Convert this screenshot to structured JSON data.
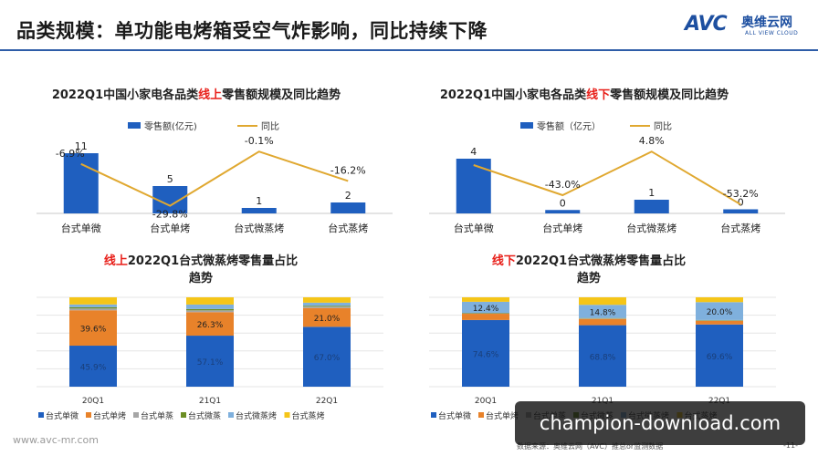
{
  "header": {
    "title": "品类规模：单功能电烤箱受空气炸影响，同比持续下降",
    "logo_mark": "AVC",
    "logo_cn": "奥维云网",
    "logo_en": "ALL VIEW CLOUD"
  },
  "footer": {
    "url": "www.avc-mr.com",
    "source": "数据来源：奥维云网（AVC）推总or监测数据",
    "page": "-11-"
  },
  "watermark": "champion-download.com",
  "colors": {
    "blue": "#1f5fbf",
    "orange": "#e8822a",
    "gray": "#a6a6a6",
    "olive": "#6b8e23",
    "lightblue": "#7fb0dd",
    "yellow": "#f5c518",
    "line": "#e0a830",
    "highlight": "#e8201a"
  },
  "chart_data": [
    {
      "type": "bar",
      "title": {
        "pre": "2022Q1中国小家电各品类",
        "highlight": "线上",
        "post": "零售额规模及同比趋势"
      },
      "legend": [
        "零售额(亿元)",
        "同比"
      ],
      "categories": [
        "台式单微",
        "台式单烤",
        "台式微蒸烤",
        "台式蒸烤"
      ],
      "series": [
        {
          "name": "零售额(亿元)",
          "values": [
            11,
            5,
            1,
            2
          ],
          "labels": [
            "11",
            "5",
            "1",
            "2"
          ]
        },
        {
          "name": "同比",
          "kind": "line",
          "values": [
            -6.9,
            -29.8,
            -0.1,
            -16.2
          ],
          "labels": [
            "-6.9%",
            "-29.8%",
            "-0.1%",
            "-16.2%"
          ]
        }
      ]
    },
    {
      "type": "bar",
      "title": {
        "pre": "2022Q1中国小家电各品类",
        "highlight": "线下",
        "post": "零售额规模及同比趋势"
      },
      "legend": [
        "零售额（亿元）",
        "同比"
      ],
      "categories": [
        "台式单微",
        "台式单烤",
        "台式微蒸烤",
        "台式蒸烤"
      ],
      "series": [
        {
          "name": "零售额（亿元）",
          "values": [
            4,
            0.25,
            1,
            0.3
          ],
          "labels": [
            "4",
            "0",
            "1",
            "0"
          ]
        },
        {
          "name": "同比",
          "kind": "line",
          "values": [
            -10,
            -43.0,
            4.8,
            -53.2
          ],
          "labels": [
            "",
            "-43.0%",
            "4.8%",
            "-53.2%"
          ]
        }
      ]
    },
    {
      "type": "bar",
      "stacked": true,
      "title": {
        "pre": "",
        "highlight": "线上",
        "post": "2022Q1台式微蒸烤零售量占比趋势"
      },
      "categories": [
        "20Q1",
        "21Q1",
        "22Q1"
      ],
      "series": [
        {
          "name": "台式单微",
          "values": [
            45.9,
            57.1,
            67.0
          ],
          "labels": [
            "45.9%",
            "57.1%",
            "67.0%"
          ]
        },
        {
          "name": "台式单烤",
          "values": [
            39.6,
            26.3,
            21.0
          ],
          "labels": [
            "39.6%",
            "26.3%",
            "21.0%"
          ]
        },
        {
          "name": "台式单蒸",
          "values": [
            2.0,
            2.0,
            1.5
          ],
          "labels": [
            "",
            "",
            ""
          ]
        },
        {
          "name": "台式微蒸",
          "values": [
            1.5,
            1.5,
            1.0
          ],
          "labels": [
            "",
            "",
            ""
          ]
        },
        {
          "name": "台式微蒸烤",
          "values": [
            3.0,
            5.0,
            3.5
          ],
          "labels": [
            "",
            "",
            ""
          ]
        },
        {
          "name": "台式蒸烤",
          "values": [
            8.0,
            8.1,
            6.0
          ],
          "labels": [
            "",
            "",
            ""
          ]
        }
      ],
      "ylim": [
        0,
        100
      ]
    },
    {
      "type": "bar",
      "stacked": true,
      "title": {
        "pre": "",
        "highlight": "线下",
        "post": "2022Q1台式微蒸烤零售量占比趋势"
      },
      "categories": [
        "20Q1",
        "21Q1",
        "22Q1"
      ],
      "series": [
        {
          "name": "台式单微",
          "values": [
            74.6,
            68.8,
            69.6
          ],
          "labels": [
            "74.6%",
            "68.8%",
            "69.6%"
          ]
        },
        {
          "name": "台式单烤",
          "values": [
            7.0,
            7.0,
            4.0
          ],
          "labels": [
            "",
            "",
            ""
          ]
        },
        {
          "name": "台式单蒸",
          "values": [
            0.5,
            0.5,
            0.5
          ],
          "labels": [
            "",
            "",
            ""
          ]
        },
        {
          "name": "台式微蒸",
          "values": [
            0.5,
            0.5,
            0.5
          ],
          "labels": [
            "",
            "",
            ""
          ]
        },
        {
          "name": "台式微蒸烤",
          "values": [
            12.4,
            14.8,
            20.0
          ],
          "labels": [
            "12.4%",
            "14.8%",
            "20.0%"
          ]
        },
        {
          "name": "台式蒸烤",
          "values": [
            5.0,
            8.4,
            5.4
          ],
          "labels": [
            "",
            "",
            ""
          ]
        }
      ],
      "ylim": [
        0,
        100
      ]
    }
  ]
}
